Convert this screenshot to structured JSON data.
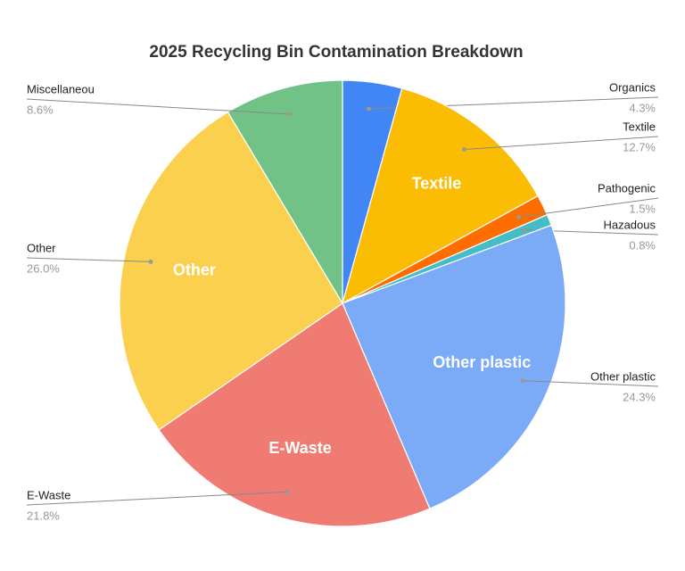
{
  "chart_data": {
    "type": "pie",
    "title": "2025 Recycling Bin Contamination Breakdown",
    "categories": [
      "Organics",
      "Textile",
      "Pathogenic",
      "Hazadous",
      "Other plastic",
      "E-Waste",
      "Other",
      "Miscellaneou"
    ],
    "values": [
      4.3,
      12.7,
      1.5,
      0.8,
      24.3,
      21.8,
      26.0,
      8.6
    ],
    "value_labels": [
      "4.3%",
      "12.7%",
      "1.5%",
      "0.8%",
      "24.3%",
      "21.8%",
      "26.0%",
      "8.6%"
    ],
    "colors": [
      "#4285f4",
      "#fbbc04",
      "#ff6d01",
      "#46bdc6",
      "#7baaf7",
      "#f07b72",
      "#fcd04f",
      "#71c287"
    ]
  }
}
